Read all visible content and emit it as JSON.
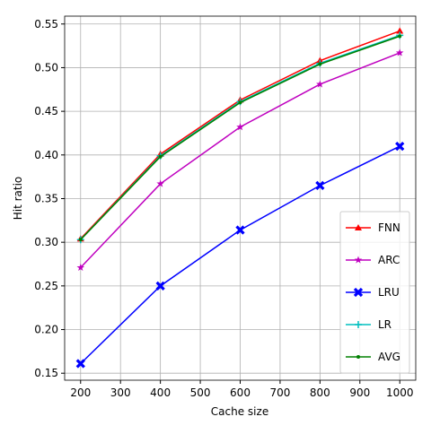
{
  "chart_data": {
    "type": "line",
    "x_label": "Cache size",
    "y_label": "Hit ratio",
    "x": [
      200,
      400,
      600,
      800,
      1000
    ],
    "series": [
      {
        "name": "FNN",
        "color": "#ff0000",
        "marker": "^",
        "values": [
          0.304,
          0.401,
          0.463,
          0.508,
          0.542
        ]
      },
      {
        "name": "ARC",
        "color": "#bf00bf",
        "marker": "*",
        "values": [
          0.271,
          0.367,
          0.432,
          0.481,
          0.517
        ]
      },
      {
        "name": "LRU",
        "color": "#0000ff",
        "marker": "X",
        "values": [
          0.161,
          0.25,
          0.314,
          0.365,
          0.41
        ]
      },
      {
        "name": "LR",
        "color": "#00bfbf",
        "marker": "+",
        "values": [
          0.303,
          0.399,
          0.461,
          0.505,
          0.537
        ]
      },
      {
        "name": "AVG",
        "color": "#008000",
        "marker": ".",
        "values": [
          0.303,
          0.398,
          0.46,
          0.504,
          0.536
        ]
      }
    ],
    "xlim": [
      160,
      1040
    ],
    "xticks": [
      200,
      300,
      400,
      500,
      600,
      700,
      800,
      900,
      1000
    ],
    "ylim": [
      0.142,
      0.559
    ],
    "yticks": [
      0.15,
      {
        "value": 0.2,
        "label": "0.20"
      },
      0.25,
      {
        "value": 0.3,
        "label": "0.30"
      },
      0.35,
      {
        "value": 0.4,
        "label": "0.40"
      },
      0.45,
      {
        "value": 0.5,
        "label": "0.50"
      },
      0.55
    ],
    "grid": true,
    "legend": "lower right"
  }
}
